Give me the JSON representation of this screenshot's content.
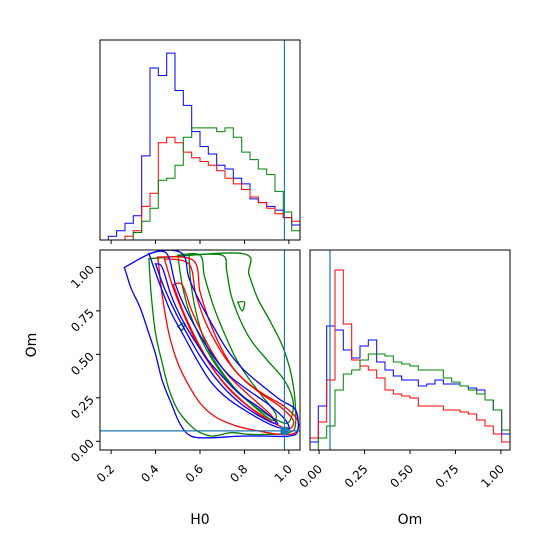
{
  "chart_data": {
    "type": "corner-plot",
    "parameters": [
      "H0",
      "Om"
    ],
    "truths": {
      "H0": 0.98,
      "Om": 0.06
    },
    "colors": {
      "blue": "#0000ff",
      "red": "#ff0000",
      "green": "#008000",
      "truth": "#1f77b4"
    },
    "h0_hist": {
      "xlim": [
        0.15,
        1.05
      ],
      "bins": [
        0.15,
        0.1875,
        0.225,
        0.2625,
        0.3,
        0.3375,
        0.375,
        0.4125,
        0.45,
        0.4875,
        0.525,
        0.5625,
        0.6,
        0.6375,
        0.675,
        0.7125,
        0.75,
        0.7875,
        0.825,
        0.8625,
        0.9,
        0.9375,
        0.975,
        1.0125,
        1.05
      ],
      "blue": [
        0.0,
        0.02,
        0.05,
        0.09,
        0.13,
        0.45,
        0.92,
        0.88,
        1.0,
        0.8,
        0.72,
        0.58,
        0.5,
        0.46,
        0.4,
        0.38,
        0.33,
        0.3,
        0.22,
        0.2,
        0.18,
        0.16,
        0.12,
        0.08
      ],
      "red": [
        0.0,
        0.0,
        0.0,
        0.02,
        0.05,
        0.18,
        0.25,
        0.52,
        0.55,
        0.52,
        0.47,
        0.44,
        0.42,
        0.4,
        0.37,
        0.33,
        0.3,
        0.27,
        0.23,
        0.2,
        0.17,
        0.14,
        0.12,
        0.1
      ],
      "green": [
        0.0,
        0.0,
        0.0,
        0.0,
        0.04,
        0.1,
        0.17,
        0.32,
        0.33,
        0.4,
        0.55,
        0.6,
        0.6,
        0.6,
        0.58,
        0.6,
        0.55,
        0.47,
        0.43,
        0.38,
        0.35,
        0.26,
        0.15,
        0.05
      ]
    },
    "om_hist": {
      "xlim": [
        -0.05,
        1.05
      ],
      "bins": [
        -0.05,
        -0.0042,
        0.0417,
        0.0875,
        0.1333,
        0.1792,
        0.225,
        0.2708,
        0.3167,
        0.3625,
        0.4083,
        0.4542,
        0.5,
        0.5458,
        0.5917,
        0.6375,
        0.6833,
        0.7292,
        0.775,
        0.8208,
        0.8667,
        0.9125,
        0.9583,
        1.0042,
        1.05
      ],
      "blue": [
        0.04,
        0.22,
        0.62,
        0.6,
        0.5,
        0.46,
        0.52,
        0.55,
        0.44,
        0.4,
        0.37,
        0.35,
        0.35,
        0.32,
        0.33,
        0.35,
        0.33,
        0.33,
        0.32,
        0.31,
        0.3,
        0.25,
        0.2,
        0.08
      ],
      "red": [
        0.06,
        0.14,
        0.35,
        0.9,
        0.63,
        0.45,
        0.42,
        0.4,
        0.36,
        0.3,
        0.28,
        0.27,
        0.26,
        0.22,
        0.22,
        0.22,
        0.2,
        0.2,
        0.19,
        0.18,
        0.15,
        0.12,
        0.08,
        0.04
      ],
      "green": [
        0.0,
        0.06,
        0.12,
        0.3,
        0.38,
        0.4,
        0.45,
        0.48,
        0.48,
        0.47,
        0.44,
        0.43,
        0.42,
        0.4,
        0.4,
        0.4,
        0.36,
        0.34,
        0.32,
        0.3,
        0.28,
        0.25,
        0.2,
        0.1
      ]
    },
    "joint": {
      "xlim": [
        0.15,
        1.05
      ],
      "ylim": [
        -0.05,
        1.1
      ],
      "xticks": [
        0.2,
        0.4,
        0.6,
        0.8,
        1.0
      ],
      "xtick_labels": [
        "0.2",
        "0.4",
        "0.6",
        "0.8",
        "1.0"
      ],
      "yticks": [
        0.0,
        0.25,
        0.5,
        0.75,
        1.0
      ],
      "ytick_labels": [
        "0.00",
        "0.25",
        "0.50",
        "0.75",
        "1.00"
      ],
      "xlabel": "H0",
      "ylabel": "Om",
      "contours": {
        "blue": [
          [
            [
              0.4,
              1.02
            ],
            [
              0.44,
              0.88
            ],
            [
              0.49,
              0.74
            ],
            [
              0.55,
              0.6
            ],
            [
              0.6,
              0.49
            ],
            [
              0.66,
              0.38
            ],
            [
              0.72,
              0.29
            ],
            [
              0.79,
              0.21
            ],
            [
              0.86,
              0.15
            ],
            [
              0.92,
              0.11
            ],
            [
              0.95,
              0.1
            ],
            [
              0.93,
              0.13
            ],
            [
              0.86,
              0.2
            ],
            [
              0.78,
              0.27
            ],
            [
              0.71,
              0.36
            ],
            [
              0.64,
              0.46
            ],
            [
              0.58,
              0.57
            ],
            [
              0.52,
              0.7
            ],
            [
              0.47,
              0.84
            ],
            [
              0.43,
              1.0
            ],
            [
              0.4,
              1.02
            ]
          ],
          [
            [
              0.37,
              1.08
            ],
            [
              0.42,
              0.9
            ],
            [
              0.47,
              0.74
            ],
            [
              0.53,
              0.6
            ],
            [
              0.59,
              0.46
            ],
            [
              0.65,
              0.34
            ],
            [
              0.72,
              0.25
            ],
            [
              0.8,
              0.18
            ],
            [
              0.88,
              0.12
            ],
            [
              0.95,
              0.08
            ],
            [
              1.0,
              0.07
            ],
            [
              0.98,
              0.13
            ],
            [
              0.9,
              0.22
            ],
            [
              0.81,
              0.3
            ],
            [
              0.73,
              0.38
            ],
            [
              0.66,
              0.49
            ],
            [
              0.6,
              0.61
            ],
            [
              0.54,
              0.75
            ],
            [
              0.49,
              0.9
            ],
            [
              0.45,
              1.08
            ],
            [
              0.37,
              1.08
            ]
          ],
          [
            [
              0.26,
              1.0
            ],
            [
              0.29,
              0.88
            ],
            [
              0.33,
              0.77
            ],
            [
              0.37,
              0.62
            ],
            [
              0.4,
              0.5
            ],
            [
              0.43,
              0.35
            ],
            [
              0.47,
              0.22
            ],
            [
              0.51,
              0.1
            ],
            [
              0.56,
              0.03
            ],
            [
              0.65,
              0.02
            ],
            [
              0.78,
              0.03
            ],
            [
              0.9,
              0.03
            ],
            [
              1.0,
              0.03
            ],
            [
              1.04,
              0.06
            ],
            [
              1.03,
              0.18
            ],
            [
              0.96,
              0.24
            ],
            [
              0.87,
              0.33
            ],
            [
              0.79,
              0.42
            ],
            [
              0.72,
              0.53
            ],
            [
              0.66,
              0.66
            ],
            [
              0.6,
              0.8
            ],
            [
              0.55,
              0.94
            ],
            [
              0.52,
              1.08
            ],
            [
              0.4,
              1.09
            ],
            [
              0.26,
              1.0
            ]
          ]
        ],
        "red": [
          [
            [
              0.48,
              0.9
            ],
            [
              0.52,
              0.76
            ],
            [
              0.57,
              0.62
            ],
            [
              0.62,
              0.5
            ],
            [
              0.68,
              0.38
            ],
            [
              0.75,
              0.28
            ],
            [
              0.82,
              0.2
            ],
            [
              0.89,
              0.14
            ],
            [
              0.94,
              0.1
            ],
            [
              0.92,
              0.15
            ],
            [
              0.86,
              0.22
            ],
            [
              0.79,
              0.3
            ],
            [
              0.72,
              0.39
            ],
            [
              0.66,
              0.5
            ],
            [
              0.61,
              0.62
            ],
            [
              0.56,
              0.76
            ],
            [
              0.52,
              0.9
            ],
            [
              0.48,
              0.9
            ]
          ],
          [
            [
              0.44,
              1.05
            ],
            [
              0.48,
              0.88
            ],
            [
              0.53,
              0.72
            ],
            [
              0.58,
              0.58
            ],
            [
              0.64,
              0.45
            ],
            [
              0.71,
              0.33
            ],
            [
              0.78,
              0.24
            ],
            [
              0.86,
              0.16
            ],
            [
              0.94,
              0.1
            ],
            [
              1.0,
              0.07
            ],
            [
              1.02,
              0.12
            ],
            [
              0.96,
              0.2
            ],
            [
              0.88,
              0.27
            ],
            [
              0.8,
              0.35
            ],
            [
              0.73,
              0.45
            ],
            [
              0.67,
              0.57
            ],
            [
              0.62,
              0.7
            ],
            [
              0.58,
              0.85
            ],
            [
              0.55,
              1.02
            ],
            [
              0.44,
              1.05
            ]
          ],
          [
            [
              0.41,
              1.06
            ],
            [
              0.43,
              0.84
            ],
            [
              0.46,
              0.62
            ],
            [
              0.5,
              0.45
            ],
            [
              0.55,
              0.32
            ],
            [
              0.6,
              0.22
            ],
            [
              0.67,
              0.14
            ],
            [
              0.76,
              0.09
            ],
            [
              0.86,
              0.06
            ],
            [
              0.96,
              0.04
            ],
            [
              1.03,
              0.05
            ],
            [
              1.04,
              0.12
            ],
            [
              0.98,
              0.2
            ],
            [
              0.9,
              0.26
            ],
            [
              0.82,
              0.33
            ],
            [
              0.75,
              0.42
            ],
            [
              0.69,
              0.55
            ],
            [
              0.64,
              0.7
            ],
            [
              0.6,
              0.86
            ],
            [
              0.57,
              1.04
            ],
            [
              0.41,
              1.06
            ]
          ]
        ],
        "green": [
          [
            [
              0.5,
              1.07
            ],
            [
              0.52,
              0.9
            ],
            [
              0.55,
              0.75
            ],
            [
              0.6,
              0.6
            ],
            [
              0.66,
              0.46
            ],
            [
              0.73,
              0.34
            ],
            [
              0.81,
              0.24
            ],
            [
              0.88,
              0.16
            ],
            [
              0.93,
              0.12
            ],
            [
              0.94,
              0.16
            ],
            [
              0.88,
              0.26
            ],
            [
              0.82,
              0.36
            ],
            [
              0.76,
              0.48
            ],
            [
              0.71,
              0.62
            ],
            [
              0.66,
              0.78
            ],
            [
              0.62,
              0.95
            ],
            [
              0.6,
              1.07
            ],
            [
              0.5,
              1.07
            ]
          ],
          [
            [
              0.55,
              1.07
            ],
            [
              0.56,
              0.9
            ],
            [
              0.59,
              0.7
            ],
            [
              0.64,
              0.52
            ],
            [
              0.71,
              0.38
            ],
            [
              0.79,
              0.26
            ],
            [
              0.87,
              0.18
            ],
            [
              0.95,
              0.12
            ],
            [
              1.0,
              0.11
            ],
            [
              1.02,
              0.22
            ],
            [
              0.98,
              0.35
            ],
            [
              0.9,
              0.47
            ],
            [
              0.83,
              0.58
            ],
            [
              0.78,
              0.7
            ],
            [
              0.74,
              0.84
            ],
            [
              0.72,
              0.98
            ],
            [
              0.7,
              1.07
            ],
            [
              0.55,
              1.07
            ]
          ],
          [
            [
              0.37,
              1.05
            ],
            [
              0.38,
              0.85
            ],
            [
              0.4,
              0.62
            ],
            [
              0.43,
              0.45
            ],
            [
              0.46,
              0.3
            ],
            [
              0.5,
              0.18
            ],
            [
              0.55,
              0.1
            ],
            [
              0.6,
              0.05
            ],
            [
              0.66,
              0.03
            ],
            [
              0.74,
              0.05
            ],
            [
              0.82,
              0.04
            ],
            [
              0.92,
              0.04
            ],
            [
              1.0,
              0.05
            ],
            [
              1.03,
              0.1
            ],
            [
              1.02,
              0.32
            ],
            [
              0.98,
              0.52
            ],
            [
              0.92,
              0.68
            ],
            [
              0.86,
              0.82
            ],
            [
              0.82,
              0.96
            ],
            [
              0.79,
              1.08
            ],
            [
              0.37,
              1.05
            ]
          ],
          [
            [
              0.77,
              0.8
            ],
            [
              0.79,
              0.75
            ],
            [
              0.8,
              0.8
            ],
            [
              0.77,
              0.8
            ]
          ],
          [
            [
              0.5,
              0.66
            ],
            [
              0.52,
              0.64
            ],
            [
              0.53,
              0.68
            ],
            [
              0.5,
              0.66
            ]
          ]
        ]
      }
    },
    "om_marginal_axis": {
      "xticks": [
        0.0,
        0.25,
        0.5,
        0.75,
        1.0
      ],
      "xtick_labels": [
        "0.00",
        "0.25",
        "0.50",
        "0.75",
        "1.00"
      ],
      "xlabel": "Om"
    }
  }
}
